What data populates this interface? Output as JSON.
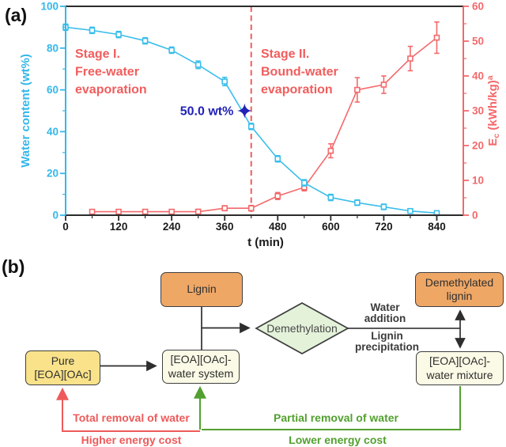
{
  "panel_a": {
    "label": "(a)"
  },
  "chart_data": {
    "type": "line",
    "xlabel": "t (min)",
    "xlim": [
      0,
      900
    ],
    "x_ticks": [
      0,
      120,
      240,
      360,
      480,
      600,
      720,
      840
    ],
    "x_minor_step": 60,
    "left_axis": {
      "label": "Water content (wt%)",
      "lim": [
        0,
        100
      ],
      "major_step": 20,
      "minor_step": 10,
      "color": "#35b8ea"
    },
    "right_axis": {
      "label_parts": {
        "base": "E",
        "sub": "c",
        "mid": " (kWh/kg)",
        "sup": "a"
      },
      "lim": [
        0,
        60
      ],
      "major_step": 10,
      "minor_step": 5,
      "color": "#f4696b"
    },
    "series": [
      {
        "name": "energy-consumption",
        "axis": "right",
        "color": "#f4696b",
        "x": [
          60,
          120,
          180,
          240,
          300,
          360,
          420,
          480,
          540,
          600,
          660,
          720,
          780,
          840
        ],
        "y": [
          1,
          1,
          1,
          1,
          1,
          2,
          2,
          5.5,
          8,
          18.5,
          36,
          37.5,
          45,
          51
        ],
        "err": [
          0.5,
          0.5,
          0.5,
          0.5,
          0.7,
          0.7,
          0.8,
          1,
          1,
          2,
          3.5,
          2.5,
          3.5,
          4.5
        ]
      },
      {
        "name": "water-content",
        "axis": "left",
        "color": "#3bbeeb",
        "x": [
          0,
          60,
          120,
          180,
          240,
          300,
          360,
          420,
          480,
          540,
          600,
          660,
          720,
          780,
          840
        ],
        "y": [
          90,
          88.5,
          86.5,
          83.5,
          79,
          72,
          64,
          42.5,
          27,
          15.5,
          8.5,
          6,
          4,
          2,
          1
        ],
        "err": [
          1.5,
          1.5,
          1.5,
          1.5,
          1.5,
          1.8,
          2,
          1.5,
          1.5,
          1.5,
          1.5,
          1.3,
          1.3,
          1,
          1
        ]
      }
    ],
    "annotations": {
      "divider_t": 420,
      "divider_color": "#f15d5d",
      "stage_color": "#f15d5d",
      "stage1_lines": [
        "Stage I.",
        "Free-water",
        "evaporation"
      ],
      "stage2_lines": [
        "Stage II.",
        "Bound-water",
        "evaporation"
      ],
      "star_label": "50.0 wt%",
      "star_t": 405,
      "star_value": 50,
      "star_color": "#2222b8"
    }
  },
  "panel_b": {
    "label": "(b)",
    "boxes": {
      "lignin": "Lignin",
      "demethylated_lignin": "Demethylated\nlignin",
      "pure_il": "Pure\n[EOA][OAc]",
      "water_system": "[EOA][OAc]-\nwater system",
      "water_mixture": "[EOA][OAc]-\nwater mixture"
    },
    "diamond_label": "Demethylation",
    "flow_labels": {
      "water_addition": "Water\naddition",
      "lignin_precipitation": "Lignin\nprecipitation",
      "total_removal": "Total removal of water",
      "higher_cost": "Higher energy cost",
      "partial_removal": "Partial removal of water",
      "lower_cost": "Lower energy cost"
    },
    "colors": {
      "red": "#ee5a5a",
      "green": "#52a02f",
      "orange": "#efa766",
      "yellow": "#f9e28a",
      "cream": "#fbfae6",
      "diamond_green": "#e4f2da"
    }
  }
}
